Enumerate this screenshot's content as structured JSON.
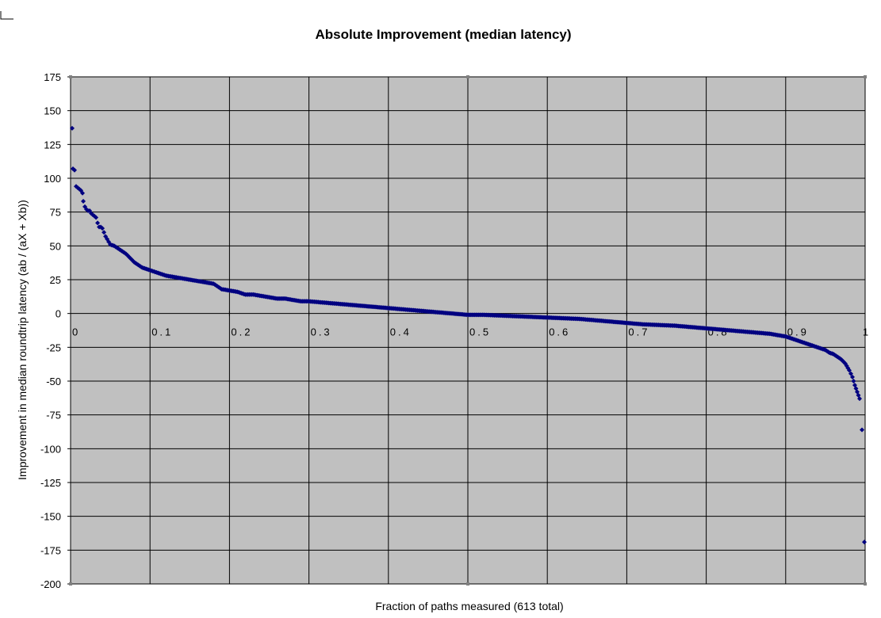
{
  "chart_data": {
    "type": "scatter",
    "title": "Absolute Improvement (median latency)",
    "xlabel": "Fraction of paths measured (613 total)",
    "ylabel": "Improvement in median roundtrip latency (ab / (aX + Xb))",
    "xlim": [
      0,
      1
    ],
    "ylim": [
      -200,
      175
    ],
    "x_ticks": [
      0,
      0.1,
      0.2,
      0.3,
      0.4,
      0.5,
      0.6,
      0.7,
      0.8,
      0.9,
      1
    ],
    "x_tick_labels": [
      "0",
      "0.1",
      "0.2",
      "0.3",
      "0.4",
      "0.5",
      "0.6",
      "0.7",
      "0.8",
      "0.9",
      "1"
    ],
    "y_ticks": [
      175,
      150,
      125,
      100,
      75,
      50,
      25,
      0,
      -25,
      -50,
      -75,
      -100,
      -125,
      -150,
      -175,
      -200
    ],
    "y_tick_labels": [
      "175",
      "150",
      "125",
      "100",
      "75",
      "50",
      "25",
      "0",
      "-25",
      "-50",
      "-75",
      "-100",
      "-125",
      "-150",
      "-175",
      "-200"
    ],
    "grid": true,
    "legend": "none",
    "colors": {
      "plot_background": "#c0c0c0",
      "gridline": "#000000",
      "marker": "#000080"
    },
    "series": [
      {
        "values_xy": [
          [
            0.002,
            137
          ],
          [
            0.003,
            107
          ],
          [
            0.005,
            106
          ],
          [
            0.007,
            94
          ],
          [
            0.009,
            93
          ],
          [
            0.011,
            92
          ],
          [
            0.013,
            91
          ],
          [
            0.015,
            89
          ],
          [
            0.016,
            83
          ],
          [
            0.018,
            79
          ],
          [
            0.02,
            77
          ],
          [
            0.022,
            76
          ],
          [
            0.024,
            76
          ],
          [
            0.026,
            74
          ],
          [
            0.028,
            73
          ],
          [
            0.03,
            72
          ],
          [
            0.032,
            71
          ],
          [
            0.034,
            67
          ],
          [
            0.036,
            64
          ],
          [
            0.038,
            64
          ],
          [
            0.04,
            63
          ],
          [
            0.042,
            60
          ],
          [
            0.044,
            57
          ],
          [
            0.046,
            55
          ],
          [
            0.048,
            53
          ],
          [
            0.05,
            51
          ],
          [
            0.055,
            50
          ],
          [
            0.06,
            48
          ],
          [
            0.065,
            46
          ],
          [
            0.07,
            44
          ],
          [
            0.075,
            41
          ],
          [
            0.08,
            38
          ],
          [
            0.085,
            36
          ],
          [
            0.09,
            34
          ],
          [
            0.095,
            33
          ],
          [
            0.1,
            32
          ],
          [
            0.11,
            30
          ],
          [
            0.12,
            28
          ],
          [
            0.13,
            27
          ],
          [
            0.14,
            26
          ],
          [
            0.15,
            25
          ],
          [
            0.16,
            24
          ],
          [
            0.17,
            23
          ],
          [
            0.18,
            22
          ],
          [
            0.19,
            18
          ],
          [
            0.2,
            17
          ],
          [
            0.21,
            16
          ],
          [
            0.22,
            14
          ],
          [
            0.23,
            14
          ],
          [
            0.24,
            13
          ],
          [
            0.25,
            12
          ],
          [
            0.26,
            11
          ],
          [
            0.27,
            11
          ],
          [
            0.28,
            10
          ],
          [
            0.29,
            9
          ],
          [
            0.3,
            9
          ],
          [
            0.32,
            8
          ],
          [
            0.34,
            7
          ],
          [
            0.36,
            6
          ],
          [
            0.38,
            5
          ],
          [
            0.4,
            4
          ],
          [
            0.42,
            3
          ],
          [
            0.44,
            2
          ],
          [
            0.46,
            1
          ],
          [
            0.48,
            0
          ],
          [
            0.5,
            -1
          ],
          [
            0.52,
            -1
          ],
          [
            0.54,
            -1.5
          ],
          [
            0.56,
            -2
          ],
          [
            0.58,
            -2.5
          ],
          [
            0.6,
            -3
          ],
          [
            0.62,
            -3.5
          ],
          [
            0.64,
            -4
          ],
          [
            0.66,
            -5
          ],
          [
            0.68,
            -6
          ],
          [
            0.7,
            -7
          ],
          [
            0.72,
            -8
          ],
          [
            0.74,
            -8.5
          ],
          [
            0.76,
            -9
          ],
          [
            0.78,
            -10
          ],
          [
            0.8,
            -11
          ],
          [
            0.82,
            -12
          ],
          [
            0.84,
            -13
          ],
          [
            0.86,
            -14
          ],
          [
            0.88,
            -15
          ],
          [
            0.9,
            -17
          ],
          [
            0.91,
            -19
          ],
          [
            0.92,
            -21
          ],
          [
            0.93,
            -23
          ],
          [
            0.94,
            -25
          ],
          [
            0.95,
            -27
          ],
          [
            0.955,
            -29
          ],
          [
            0.96,
            -30
          ],
          [
            0.965,
            -32
          ],
          [
            0.97,
            -34
          ],
          [
            0.975,
            -37
          ],
          [
            0.98,
            -42
          ],
          [
            0.984,
            -47
          ],
          [
            0.987,
            -53
          ],
          [
            0.99,
            -58
          ],
          [
            0.993,
            -63
          ],
          [
            0.996,
            -86
          ],
          [
            0.999,
            -169
          ]
        ]
      }
    ]
  }
}
